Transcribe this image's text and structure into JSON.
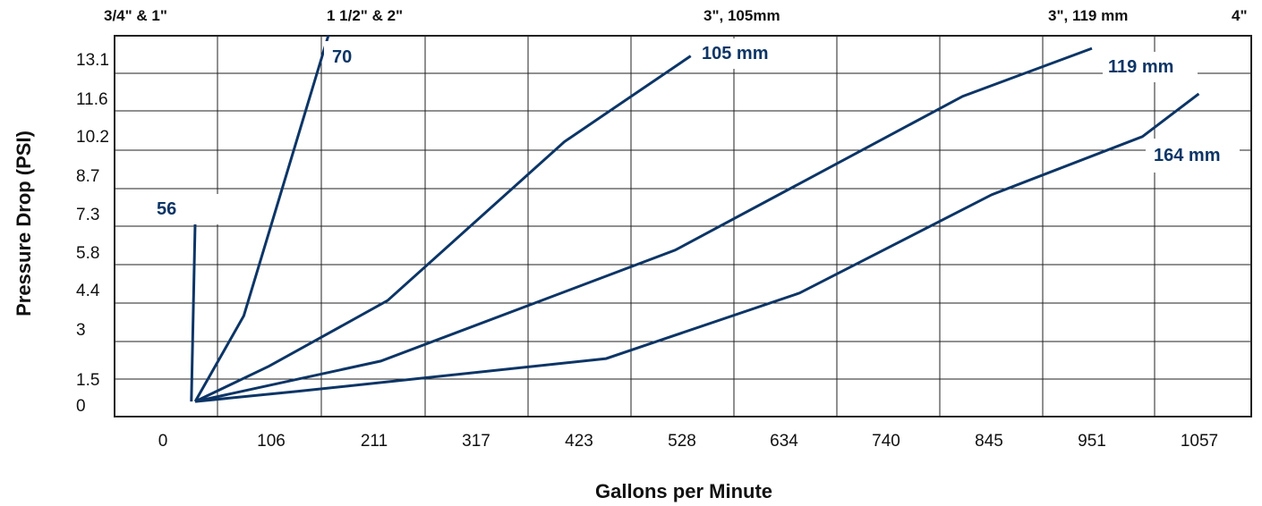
{
  "chart_data": {
    "type": "line",
    "xlabel": "Gallons per Minute",
    "ylabel": "Pressure Drop (PSI)",
    "x_ticks": [
      "0",
      "106",
      "211",
      "317",
      "423",
      "528",
      "634",
      "740",
      "845",
      "951",
      "1057"
    ],
    "y_ticks": [
      "0",
      "1.5",
      "3",
      "4.4",
      "5.8",
      "7.3",
      "8.7",
      "10.2",
      "11.6",
      "13.1"
    ],
    "xlim": [
      -53,
      1117
    ],
    "ylim": [
      -0.6,
      14.5
    ],
    "grid": true,
    "size_labels": [
      "3/4\" & 1\"",
      "1 1/2\" & 2\"",
      "3\", 105mm",
      "3\", 119 mm",
      "4\""
    ],
    "series": [
      {
        "name": "56",
        "color": "#0c3566",
        "x": [
          26,
          30
        ],
        "y": [
          0,
          7.2
        ]
      },
      {
        "name": "70",
        "color": "#0c3566",
        "x": [
          30,
          80,
          167
        ],
        "y": [
          0,
          3.4,
          14.5
        ]
      },
      {
        "name": "105 mm",
        "color": "#0c3566",
        "x": [
          30,
          106,
          228,
          410,
          540
        ],
        "y": [
          0,
          1.4,
          4.0,
          10.3,
          13.7
        ]
      },
      {
        "name": "119 mm",
        "color": "#0c3566",
        "x": [
          30,
          221,
          524,
          820,
          953
        ],
        "y": [
          0,
          1.6,
          6.0,
          12.1,
          14.0
        ]
      },
      {
        "name": "164 mm",
        "color": "#0c3566",
        "x": [
          30,
          135,
          453,
          652,
          850,
          1005,
          1063
        ],
        "y": [
          0,
          0.4,
          1.7,
          4.3,
          8.2,
          10.5,
          12.2
        ]
      }
    ]
  }
}
